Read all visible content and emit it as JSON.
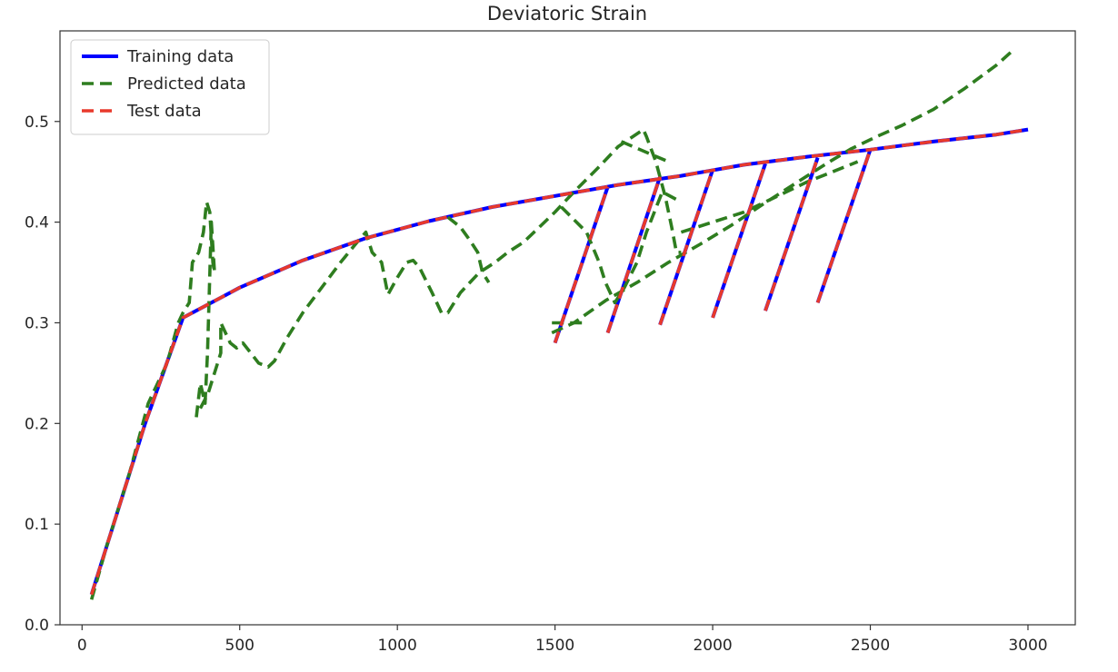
{
  "chart_data": {
    "type": "line",
    "title": "Deviatoric Strain",
    "xlabel": "",
    "ylabel": "",
    "xlim": [
      -70,
      3150
    ],
    "ylim": [
      0.0,
      0.59
    ],
    "x_ticks": [
      0,
      500,
      1000,
      1500,
      2000,
      2500,
      3000
    ],
    "y_ticks": [
      0.0,
      0.1,
      0.2,
      0.3,
      0.4,
      0.5
    ],
    "x_tick_labels": [
      "0",
      "500",
      "1000",
      "1500",
      "2000",
      "2500",
      "3000"
    ],
    "y_tick_labels": [
      "0.0",
      "0.1",
      "0.2",
      "0.3",
      "0.4",
      "0.5"
    ],
    "grid": false,
    "legend_position": "upper-left",
    "series": [
      {
        "name": "Training data",
        "color": "#0000ff",
        "style": "solid",
        "segments": [
          [
            [
              30,
              0.03
            ],
            [
              100,
              0.1
            ],
            [
              200,
              0.2
            ],
            [
              320,
              0.305
            ],
            [
              500,
              0.335
            ],
            [
              700,
              0.362
            ],
            [
              900,
              0.384
            ],
            [
              1100,
              0.401
            ],
            [
              1300,
              0.415
            ],
            [
              1500,
              0.426
            ],
            [
              1700,
              0.437
            ],
            [
              1900,
              0.446
            ],
            [
              2100,
              0.457
            ],
            [
              2300,
              0.465
            ],
            [
              2500,
              0.472
            ],
            [
              2700,
              0.48
            ],
            [
              2900,
              0.487
            ],
            [
              3000,
              0.492
            ]
          ],
          [
            [
              1500,
              0.28
            ],
            [
              1667,
              0.435
            ]
          ],
          [
            [
              1667,
              0.29
            ],
            [
              1833,
              0.445
            ]
          ],
          [
            [
              1833,
              0.298
            ],
            [
              2000,
              0.452
            ]
          ],
          [
            [
              2000,
              0.305
            ],
            [
              2167,
              0.458
            ]
          ],
          [
            [
              2167,
              0.312
            ],
            [
              2333,
              0.464
            ]
          ],
          [
            [
              2333,
              0.32
            ],
            [
              2500,
              0.472
            ]
          ]
        ]
      },
      {
        "name": "Predicted data",
        "color": "#2e7d1f",
        "style": "dashed",
        "segments": [
          [
            [
              30,
              0.025
            ],
            [
              80,
              0.08
            ],
            [
              150,
              0.15
            ],
            [
              210,
              0.22
            ],
            [
              270,
              0.26
            ],
            [
              305,
              0.3
            ],
            [
              320,
              0.31
            ],
            [
              340,
              0.32
            ],
            [
              350,
              0.36
            ],
            [
              370,
              0.37
            ],
            [
              385,
              0.39
            ],
            [
              395,
              0.42
            ],
            [
              405,
              0.41
            ],
            [
              415,
              0.36
            ],
            [
              420,
              0.35
            ],
            [
              410,
              0.4
            ],
            [
              398,
              0.27
            ],
            [
              390,
              0.22
            ],
            [
              375,
              0.24
            ],
            [
              360,
              0.2
            ]
          ],
          [
            [
              375,
              0.215
            ],
            [
              400,
              0.23
            ],
            [
              440,
              0.27
            ],
            [
              440,
              0.3
            ],
            [
              470,
              0.28
            ],
            [
              490,
              0.275
            ],
            [
              510,
              0.28
            ],
            [
              535,
              0.27
            ],
            [
              560,
              0.26
            ],
            [
              590,
              0.256
            ],
            [
              610,
              0.262
            ],
            [
              650,
              0.285
            ],
            [
              700,
              0.31
            ],
            [
              760,
              0.335
            ],
            [
              820,
              0.36
            ],
            [
              880,
              0.383
            ],
            [
              900,
              0.39
            ],
            [
              920,
              0.37
            ],
            [
              950,
              0.36
            ],
            [
              970,
              0.328
            ],
            [
              1000,
              0.345
            ],
            [
              1030,
              0.36
            ],
            [
              1050,
              0.362
            ],
            [
              1070,
              0.355
            ],
            [
              1110,
              0.33
            ],
            [
              1140,
              0.31
            ],
            [
              1160,
              0.31
            ],
            [
              1200,
              0.33
            ],
            [
              1260,
              0.35
            ],
            [
              1310,
              0.36
            ],
            [
              1350,
              0.37
            ],
            [
              1400,
              0.38
            ],
            [
              1450,
              0.395
            ],
            [
              1500,
              0.41
            ],
            [
              1560,
              0.43
            ],
            [
              1640,
              0.455
            ],
            [
              1700,
              0.475
            ],
            [
              1780,
              0.492
            ],
            [
              1790,
              0.485
            ],
            [
              1820,
              0.46
            ],
            [
              1850,
              0.425
            ],
            [
              1870,
              0.395
            ],
            [
              1885,
              0.37
            ],
            [
              1900,
              0.37
            ]
          ],
          [
            [
              1160,
              0.405
            ],
            [
              1200,
              0.395
            ],
            [
              1230,
              0.382
            ],
            [
              1255,
              0.37
            ],
            [
              1270,
              0.35
            ],
            [
              1290,
              0.34
            ]
          ],
          [
            [
              1490,
              0.29
            ],
            [
              1560,
              0.3
            ],
            [
              1660,
              0.322
            ],
            [
              1760,
              0.34
            ],
            [
              1860,
              0.36
            ],
            [
              1960,
              0.378
            ],
            [
              2060,
              0.397
            ],
            [
              2160,
              0.418
            ],
            [
              2260,
              0.438
            ],
            [
              2360,
              0.458
            ],
            [
              2440,
              0.473
            ],
            [
              2520,
              0.485
            ],
            [
              2600,
              0.496
            ],
            [
              2700,
              0.512
            ],
            [
              2800,
              0.533
            ],
            [
              2900,
              0.556
            ],
            [
              2950,
              0.57
            ]
          ],
          [
            [
              1520,
              0.415
            ],
            [
              1600,
              0.39
            ],
            [
              1640,
              0.36
            ],
            [
              1660,
              0.34
            ],
            [
              1690,
              0.32
            ],
            [
              1720,
              0.335
            ],
            [
              1760,
              0.36
            ],
            [
              1790,
              0.39
            ],
            [
              1840,
              0.43
            ],
            [
              1900,
              0.42
            ]
          ],
          [
            [
              1490,
              0.3
            ],
            [
              1600,
              0.3
            ]
          ],
          [
            [
              1710,
              0.48
            ],
            [
              1860,
              0.46
            ]
          ],
          [
            [
              1900,
              0.39
            ],
            [
              2000,
              0.4
            ],
            [
              2100,
              0.41
            ],
            [
              2200,
              0.425
            ],
            [
              2300,
              0.44
            ],
            [
              2380,
              0.45
            ],
            [
              2460,
              0.46
            ]
          ]
        ]
      },
      {
        "name": "Test data",
        "color": "#e8392b",
        "style": "dashed",
        "segments": [
          [
            [
              30,
              0.03
            ],
            [
              100,
              0.1
            ],
            [
              200,
              0.2
            ],
            [
              320,
              0.305
            ],
            [
              500,
              0.335
            ],
            [
              700,
              0.362
            ],
            [
              900,
              0.384
            ],
            [
              1100,
              0.401
            ],
            [
              1300,
              0.415
            ],
            [
              1500,
              0.426
            ],
            [
              1700,
              0.437
            ],
            [
              1900,
              0.446
            ],
            [
              2100,
              0.457
            ],
            [
              2300,
              0.465
            ],
            [
              2500,
              0.472
            ],
            [
              2700,
              0.48
            ],
            [
              2900,
              0.487
            ],
            [
              3000,
              0.492
            ]
          ],
          [
            [
              1500,
              0.28
            ],
            [
              1667,
              0.435
            ]
          ],
          [
            [
              1667,
              0.29
            ],
            [
              1833,
              0.445
            ]
          ],
          [
            [
              1833,
              0.298
            ],
            [
              2000,
              0.452
            ]
          ],
          [
            [
              2000,
              0.305
            ],
            [
              2167,
              0.458
            ]
          ],
          [
            [
              2167,
              0.312
            ],
            [
              2333,
              0.464
            ]
          ],
          [
            [
              2333,
              0.32
            ],
            [
              2500,
              0.472
            ]
          ]
        ]
      }
    ]
  }
}
